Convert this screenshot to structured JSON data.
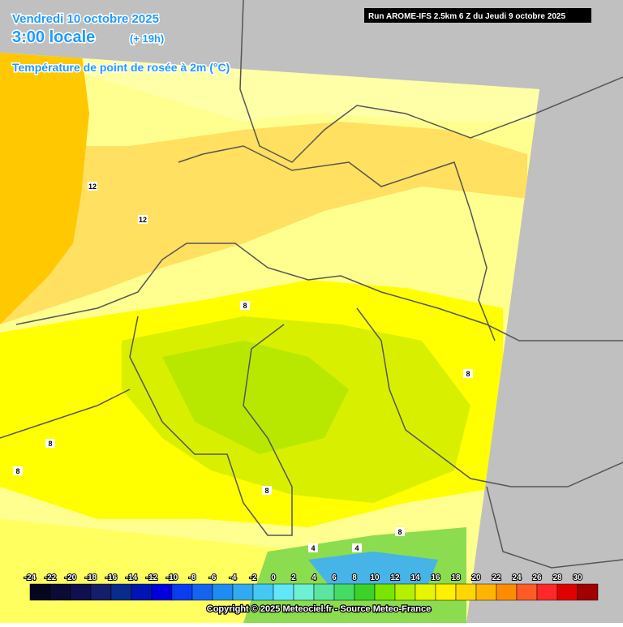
{
  "header": {
    "date": "Vendredi 10 octobre 2025",
    "time": "3:00 locale",
    "offset": "(+ 19h)",
    "subtitle": "Température de point de rosée à 2m (°C)",
    "run": "Run AROME-IFS 2.5km 6 Z du Jeudi 9 octobre 2025"
  },
  "map": {
    "contour_labels": [
      12,
      12,
      8,
      8,
      8,
      8,
      8,
      8,
      4,
      4
    ]
  },
  "legend": {
    "labels": [
      -24,
      -22,
      -20,
      -18,
      -16,
      -14,
      -12,
      -10,
      -8,
      -6,
      -4,
      -2,
      0,
      2,
      4,
      6,
      8,
      10,
      12,
      14,
      16,
      18,
      20,
      22,
      24,
      26,
      28,
      30
    ],
    "colors": [
      "#06061e",
      "#0b0b36",
      "#101050",
      "#141e6a",
      "#0a2a8c",
      "#0014b4",
      "#0000dc",
      "#0a3cf0",
      "#1464f0",
      "#1e8cf0",
      "#32aaf0",
      "#46c8f5",
      "#64e6fa",
      "#6ef0d2",
      "#5ae6a0",
      "#46dc64",
      "#3cd228",
      "#78e600",
      "#b4f000",
      "#e6f500",
      "#fff000",
      "#ffd700",
      "#ffb400",
      "#ff8c00",
      "#ff5a28",
      "#ff2828",
      "#e10000",
      "#a00000"
    ]
  },
  "footer": {
    "copyright": "Copyright © 2025 Meteociel.fr - Source Meteo-France"
  }
}
